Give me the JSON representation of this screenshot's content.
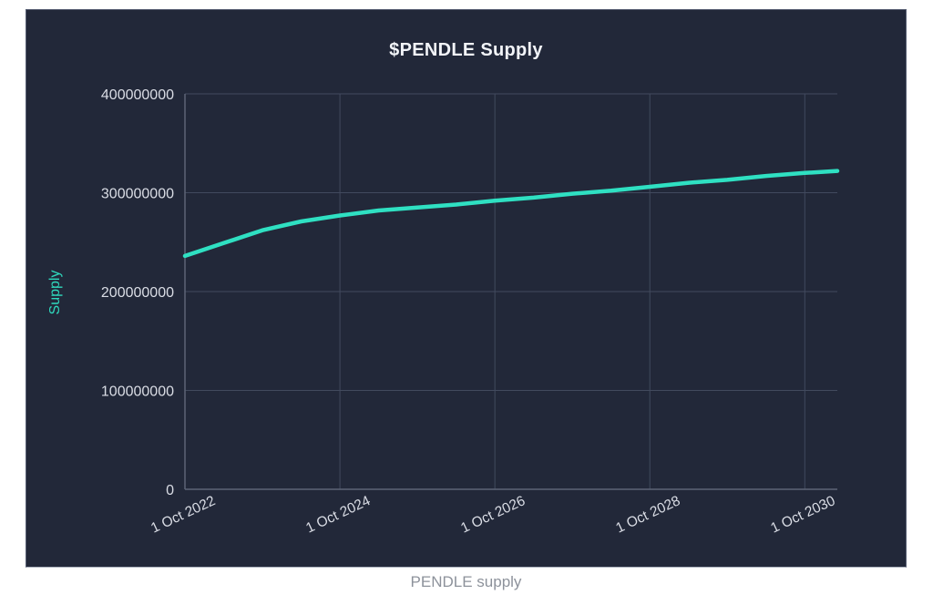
{
  "chart": {
    "title": "$PENDLE Supply",
    "y_axis_label": "Supply",
    "caption": "PENDLE supply"
  },
  "colors": {
    "page_bg": "#ffffff",
    "panel_bg": "#222839",
    "line": "#2fe0c2",
    "grid": "#424a5e",
    "axis": "#5c6477",
    "tick_text": "#dadde5",
    "title_text": "#f2f4f8",
    "ylabel_text": "#2fd9bd",
    "caption_text": "#8d929b"
  },
  "chart_data": {
    "type": "line",
    "title": "$PENDLE Supply",
    "xlabel": "",
    "ylabel": "Supply",
    "legend": "none",
    "grid": true,
    "xlim": [
      2022.75,
      2031.17
    ],
    "ylim": [
      0,
      400000000
    ],
    "x_ticks": [
      {
        "x": 2022.75,
        "label": "1 Oct 2022"
      },
      {
        "x": 2024.75,
        "label": "1 Oct 2024"
      },
      {
        "x": 2026.75,
        "label": "1 Oct 2026"
      },
      {
        "x": 2028.75,
        "label": "1 Oct 2028"
      },
      {
        "x": 2030.75,
        "label": "1 Oct 2030"
      }
    ],
    "y_ticks": [
      {
        "value": 0,
        "label": "0"
      },
      {
        "value": 100000000,
        "label": "100000000"
      },
      {
        "value": 200000000,
        "label": "200000000"
      },
      {
        "value": 300000000,
        "label": "300000000"
      },
      {
        "value": 400000000,
        "label": "400000000"
      }
    ],
    "series": [
      {
        "name": "PENDLE supply",
        "x": [
          2022.75,
          2023.25,
          2023.75,
          2024.25,
          2024.75,
          2025.25,
          2025.75,
          2026.25,
          2026.75,
          2027.25,
          2027.75,
          2028.25,
          2028.75,
          2029.25,
          2029.75,
          2030.25,
          2030.75,
          2031.17
        ],
        "values": [
          236000000,
          249000000,
          262000000,
          271000000,
          277000000,
          282000000,
          285000000,
          288000000,
          292000000,
          295000000,
          299000000,
          302000000,
          306000000,
          310000000,
          313000000,
          317000000,
          320000000,
          322000000
        ]
      }
    ]
  }
}
